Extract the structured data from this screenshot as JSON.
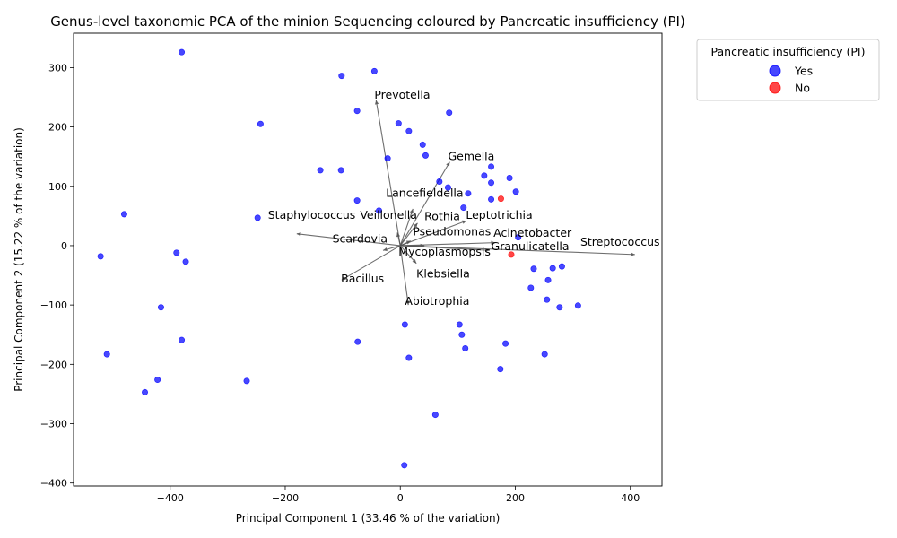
{
  "chart_data": {
    "type": "scatter",
    "title": "Genus-level taxonomic PCA of the minion Sequencing coloured by Pancreatic insufficiency (PI)",
    "xlabel": "Principal Component 1 (33.46 % of the variation)",
    "ylabel": "Principal Component 2 (15.22 % of the variation)",
    "xlim": [
      -568,
      455
    ],
    "ylim": [
      -405,
      358
    ],
    "xticks": [
      -400,
      -200,
      0,
      200,
      400
    ],
    "yticks": [
      -400,
      -300,
      -200,
      -100,
      0,
      100,
      200,
      300
    ],
    "legend": {
      "title": "Pancreatic insufficiency (PI)",
      "placement": "outside-top-right",
      "entries": [
        {
          "label": "Yes",
          "color": "#0000ff"
        },
        {
          "label": "No",
          "color": "#ff0000"
        }
      ]
    },
    "series": [
      {
        "name": "Yes",
        "color": "#0000ff",
        "points": [
          [
            -380,
            326
          ],
          [
            -45,
            294
          ],
          [
            -102,
            286
          ],
          [
            -75,
            227
          ],
          [
            85,
            224
          ],
          [
            -243,
            205
          ],
          [
            -3,
            206
          ],
          [
            15,
            193
          ],
          [
            39,
            170
          ],
          [
            44,
            152
          ],
          [
            -22,
            147
          ],
          [
            -139,
            127
          ],
          [
            -103,
            127
          ],
          [
            158,
            133
          ],
          [
            190,
            114
          ],
          [
            146,
            118
          ],
          [
            158,
            106
          ],
          [
            68,
            108
          ],
          [
            83,
            98
          ],
          [
            118,
            88
          ],
          [
            201,
            91
          ],
          [
            -75,
            76
          ],
          [
            158,
            78
          ],
          [
            110,
            64
          ],
          [
            -37,
            59
          ],
          [
            -480,
            53
          ],
          [
            -248,
            47
          ],
          [
            205,
            14
          ],
          [
            -521,
            -18
          ],
          [
            -389,
            -12
          ],
          [
            -373,
            -27
          ],
          [
            232,
            -39
          ],
          [
            265,
            -38
          ],
          [
            281,
            -35
          ],
          [
            257,
            -58
          ],
          [
            227,
            -71
          ],
          [
            255,
            -91
          ],
          [
            309,
            -101
          ],
          [
            277,
            -104
          ],
          [
            -416,
            -104
          ],
          [
            8,
            -133
          ],
          [
            103,
            -133
          ],
          [
            107,
            -150
          ],
          [
            -380,
            -159
          ],
          [
            -74,
            -162
          ],
          [
            183,
            -165
          ],
          [
            113,
            -173
          ],
          [
            -510,
            -183
          ],
          [
            251,
            -183
          ],
          [
            15,
            -189
          ],
          [
            174,
            -208
          ],
          [
            -422,
            -226
          ],
          [
            -267,
            -228
          ],
          [
            -444,
            -247
          ],
          [
            61,
            -285
          ],
          [
            7,
            -370
          ]
        ]
      },
      {
        "name": "No",
        "color": "#ff0000",
        "points": [
          [
            175,
            79
          ],
          [
            193,
            -15
          ]
        ]
      }
    ],
    "loadings": [
      {
        "label": "Prevotella",
        "x": -42,
        "y": 245,
        "lx": -45,
        "ly": 248
      },
      {
        "label": "Gemella",
        "x": 86,
        "y": 141,
        "lx": 83,
        "ly": 144
      },
      {
        "label": "Lancefieldella",
        "x": 22,
        "y": 62,
        "lx": -25,
        "ly": 82
      },
      {
        "label": "Leptotrichia",
        "x": 115,
        "y": 42,
        "lx": 114,
        "ly": 45
      },
      {
        "label": "Staphylococcus",
        "x": -180,
        "y": 20,
        "lx": -230,
        "ly": 45
      },
      {
        "label": "Veillonella",
        "x": -5,
        "y": 22,
        "lx": -70,
        "ly": 45
      },
      {
        "label": "Rothia",
        "x": 30,
        "y": 38,
        "lx": 42,
        "ly": 43
      },
      {
        "label": "Pseudomonas",
        "x": 18,
        "y": 8,
        "lx": 22,
        "ly": 17
      },
      {
        "label": "Acinetobacter",
        "x": 165,
        "y": 5,
        "lx": 162,
        "ly": 15
      },
      {
        "label": "Scardovia",
        "x": 42,
        "y": 0,
        "lx": -118,
        "ly": 5
      },
      {
        "label": "Streptococcus",
        "x": 408,
        "y": -15,
        "lx": 313,
        "ly": 0
      },
      {
        "label": "Granulicatella",
        "x": 155,
        "y": -8,
        "lx": 158,
        "ly": -8
      },
      {
        "label": "Mycoplasmopsis",
        "x": -30,
        "y": -8,
        "lx": -3,
        "ly": -17
      },
      {
        "label": "Klebsiella",
        "x": 28,
        "y": -30,
        "lx": 28,
        "ly": -54
      },
      {
        "label": "Bacillus",
        "x": -102,
        "y": -58,
        "lx": -103,
        "ly": -62
      },
      {
        "label": "Abiotrophia",
        "x": 14,
        "y": -100,
        "lx": 8,
        "ly": -100
      }
    ]
  }
}
